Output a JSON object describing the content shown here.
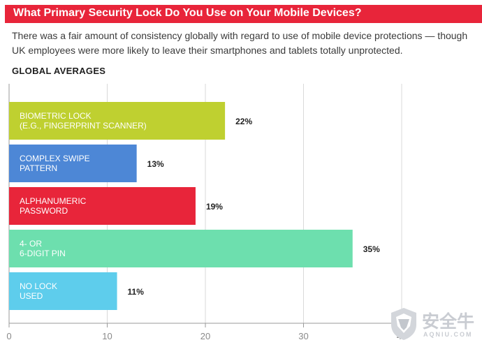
{
  "header": {
    "title": "What Primary Security Lock Do You Use on Your Mobile Devices?",
    "subtitle": "There was a fair amount of consistency globally with regard to use of mobile device protections — though UK employees were more likely to leave their smartphones and tablets totally unprotected.",
    "section_label": "GLOBAL AVERAGES"
  },
  "colors": {
    "title_bar": "#e8253a",
    "axis": "#999999",
    "grid": "#d9d9d9"
  },
  "chart_data": {
    "type": "bar",
    "orientation": "horizontal",
    "title": "",
    "xlabel": "",
    "ylabel": "",
    "xlim": [
      0,
      40
    ],
    "xticks": [
      0,
      10,
      20,
      30,
      40
    ],
    "grid": true,
    "legend": "none",
    "categories": [
      [
        "BIOMETRIC LOCK",
        "(E.G., FINGERPRINT SCANNER)"
      ],
      [
        "COMPLEX SWIPE",
        "PATTERN"
      ],
      [
        "ALPHANUMERIC",
        "PASSWORD"
      ],
      [
        "4- OR",
        "6-DIGIT PIN"
      ],
      [
        "NO LOCK",
        "USED"
      ]
    ],
    "values": [
      22,
      13,
      19,
      35,
      11
    ],
    "value_labels": [
      "22%",
      "13%",
      "19%",
      "35%",
      "11%"
    ],
    "colors": [
      "#bfd030",
      "#4d87d6",
      "#e8253a",
      "#6ddfae",
      "#5ecdec"
    ]
  },
  "watermark": {
    "cn_text": "安全牛",
    "en_text": "AQNIU.COM"
  }
}
